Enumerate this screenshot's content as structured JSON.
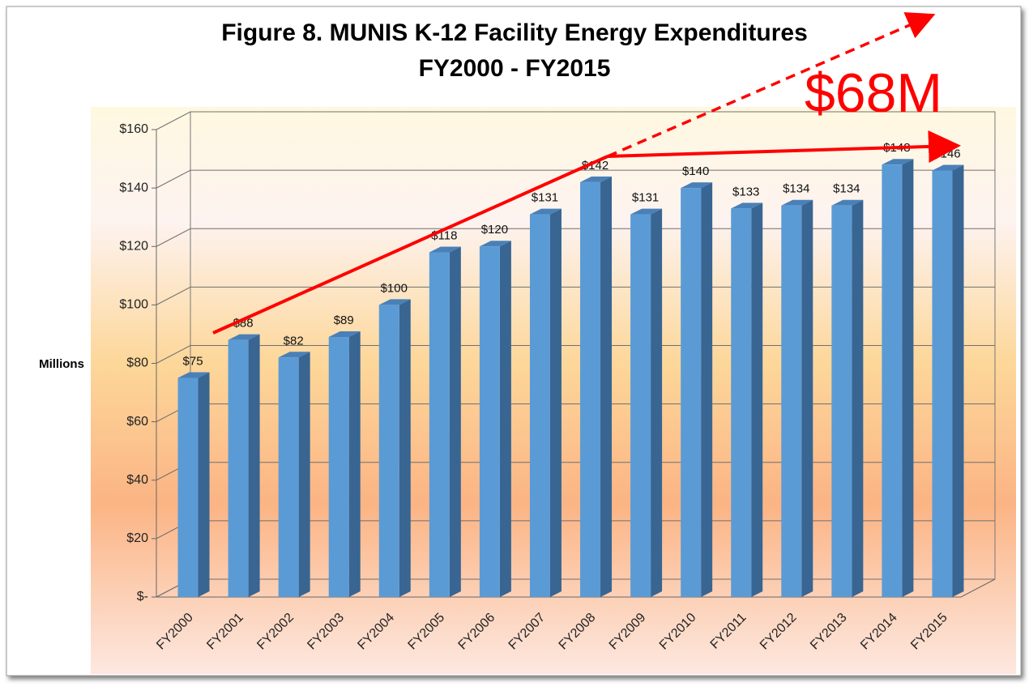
{
  "chart_data": {
    "type": "bar",
    "title": "Figure 8.  MUNIS K-12 Facility Energy Expenditures",
    "subtitle": "FY2000 - FY2015",
    "y_label": "Millions",
    "annotation": "$68M",
    "categories": [
      "FY2000",
      "FY2001",
      "FY2002",
      "FY2003",
      "FY2004",
      "FY2005",
      "FY2006",
      "FY2007",
      "FY2008",
      "FY2009",
      "FY2010",
      "FY2011",
      "FY2012",
      "FY2013",
      "FY2014",
      "FY2015"
    ],
    "values": [
      75,
      88,
      82,
      89,
      100,
      118,
      120,
      131,
      142,
      131,
      140,
      133,
      134,
      134,
      148,
      146
    ],
    "value_labels": [
      "$75",
      "$88",
      "$82",
      "$89",
      "$100",
      "$118",
      "$120",
      "$131",
      "$142",
      "$131",
      "$140",
      "$133",
      "$134",
      "$134",
      "$148",
      "$146"
    ],
    "color": "#5b9bd5",
    "ylim": [
      0,
      160
    ],
    "yticks": [
      {
        "value": 0,
        "label": "$-"
      },
      {
        "value": 20,
        "label": "$20"
      },
      {
        "value": 40,
        "label": "$40"
      },
      {
        "value": 60,
        "label": "$60"
      },
      {
        "value": 80,
        "label": "$80"
      },
      {
        "value": 100,
        "label": "$100"
      },
      {
        "value": 120,
        "label": "$120"
      },
      {
        "value": 140,
        "label": "$140"
      },
      {
        "value": 160,
        "label": "$160"
      }
    ],
    "grid": true
  }
}
